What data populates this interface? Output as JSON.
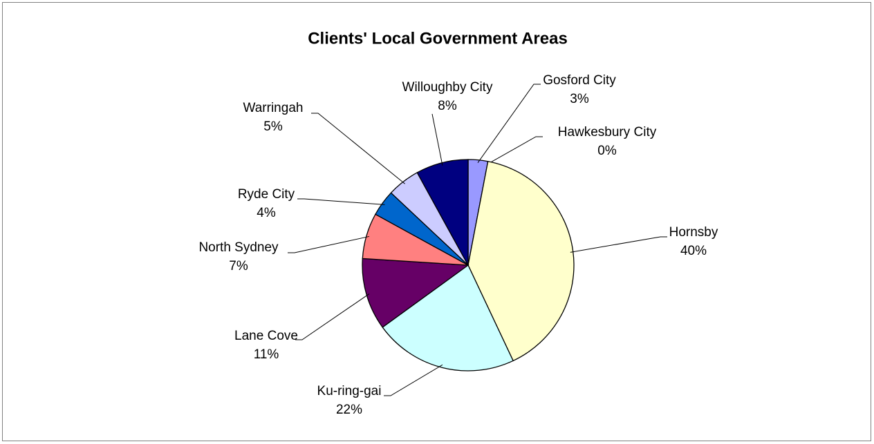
{
  "chart_data": {
    "type": "pie",
    "title": "Clients' Local Government Areas",
    "categories": [
      "Gosford City",
      "Hawkesbury City",
      "Hornsby",
      "Ku-ring-gai",
      "Lane Cove",
      "North Sydney",
      "Ryde City",
      "Warringah",
      "Willoughby City"
    ],
    "values": [
      3,
      0,
      40,
      22,
      11,
      7,
      4,
      5,
      8
    ],
    "value_labels": [
      "3%",
      "0%",
      "40%",
      "22%",
      "11%",
      "7%",
      "4%",
      "5%",
      "8%"
    ],
    "colors": [
      "#9999ff",
      "#993366",
      "#ffffcc",
      "#ccffff",
      "#660066",
      "#ff8080",
      "#0066cc",
      "#ccccff",
      "#000080"
    ]
  }
}
